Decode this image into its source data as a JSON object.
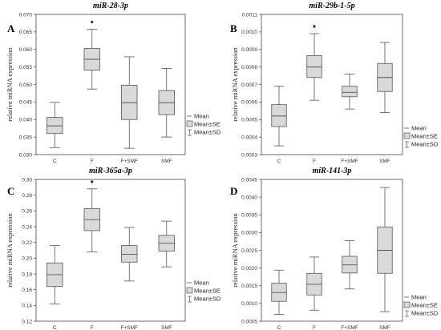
{
  "chart_data": [
    {
      "type": "box",
      "panel": "A",
      "title": "miR-28-3p",
      "ylabel": "relative miRNA expression",
      "categories": [
        "C",
        "F",
        "F+SMF",
        "SMF"
      ],
      "ylim": [
        0.03,
        0.07
      ],
      "yticks": [
        "0.030",
        "0.035",
        "0.040",
        "0.045",
        "0.050",
        "0.055",
        "0.060",
        "0.065",
        "0.070"
      ],
      "mean": [
        0.0382,
        0.0572,
        0.0448,
        0.0448
      ],
      "se_low": [
        0.036,
        0.0541,
        0.04,
        0.0414
      ],
      "se_high": [
        0.0406,
        0.0603,
        0.0498,
        0.0483
      ],
      "sd_low": [
        0.032,
        0.0487,
        0.0318,
        0.035
      ],
      "sd_high": [
        0.0449,
        0.0658,
        0.0579,
        0.0546
      ],
      "significant": [
        false,
        true,
        false,
        false
      ],
      "star_label": "*"
    },
    {
      "type": "box",
      "panel": "B",
      "title": "miR-29b-1-5p",
      "ylabel": "relative miRNA expression",
      "categories": [
        "C",
        "F",
        "F+SMF",
        "SMF"
      ],
      "ylim": [
        0.0003,
        0.0011
      ],
      "yticks": [
        "0.0003",
        "0.0004",
        "0.0005",
        "0.0006",
        "0.0007",
        "0.0008",
        "0.0009",
        "0.0010",
        "0.0011"
      ],
      "mean": [
        0.00052,
        0.0008,
        0.000655,
        0.00074
      ],
      "se_low": [
        0.00046,
        0.00074,
        0.00063,
        0.00066
      ],
      "se_high": [
        0.000585,
        0.000865,
        0.00069,
        0.00082
      ],
      "sd_low": [
        0.00035,
        0.00061,
        0.00056,
        0.00054
      ],
      "sd_high": [
        0.00069,
        0.00099,
        0.00076,
        0.00094
      ],
      "significant": [
        false,
        true,
        false,
        false
      ],
      "star_label": "*"
    },
    {
      "type": "box",
      "panel": "C",
      "title": "miR-365a-3p",
      "ylabel": "relative miRNA expression",
      "categories": [
        "C",
        "F",
        "F+SMF",
        "SMF"
      ],
      "ylim": [
        0.12,
        0.3
      ],
      "yticks": [
        "0.12",
        "0.14",
        "0.16",
        "0.18",
        "0.20",
        "0.22",
        "0.24",
        "0.26",
        "0.28",
        "0.30"
      ],
      "mean": [
        0.179,
        0.249,
        0.205,
        0.219
      ],
      "se_low": [
        0.164,
        0.235,
        0.195,
        0.209
      ],
      "se_high": [
        0.194,
        0.263,
        0.216,
        0.229
      ],
      "sd_low": [
        0.142,
        0.208,
        0.171,
        0.189
      ],
      "sd_high": [
        0.216,
        0.288,
        0.239,
        0.247
      ],
      "significant": [
        false,
        true,
        false,
        false
      ],
      "star_label": "*"
    },
    {
      "type": "box",
      "panel": "D",
      "title": "miR-141-3p",
      "ylabel": "relative miRNA expression",
      "categories": [
        "C",
        "F",
        "F+SMF",
        "SMF"
      ],
      "ylim": [
        0.0005,
        0.0045
      ],
      "yticks": [
        "0.0005",
        "0.0010",
        "0.0015",
        "0.0020",
        "0.0025",
        "0.0030",
        "0.0035",
        "0.0040",
        "0.0045"
      ],
      "mean": [
        0.00131,
        0.00154,
        0.00209,
        0.0025
      ],
      "se_low": [
        0.00106,
        0.00124,
        0.00186,
        0.00185
      ],
      "se_high": [
        0.00157,
        0.00185,
        0.00233,
        0.00316
      ],
      "sd_low": [
        0.00069,
        0.00081,
        0.00141,
        0.00077
      ],
      "sd_high": [
        0.00194,
        0.00231,
        0.00277,
        0.00427
      ],
      "significant": [
        false,
        false,
        false,
        false
      ],
      "star_label": "*"
    }
  ],
  "legend": {
    "mean_label": "Mean",
    "se_label": "Mean±SE",
    "sd_label": "Mean±SD"
  },
  "colors": {
    "box_fill": "#d9d9d9",
    "line": "#555555",
    "axis": "#444444"
  }
}
